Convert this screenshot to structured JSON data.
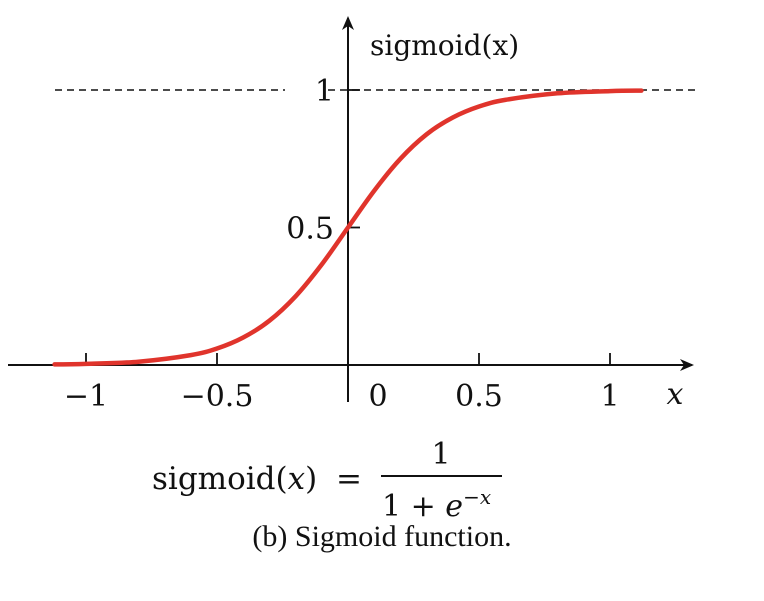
{
  "chart_data": {
    "type": "line",
    "title": "",
    "xlabel": "x",
    "ylabel": "sigmoid(x)",
    "xlim": [
      -1.2,
      1.3
    ],
    "ylim": [
      0,
      1.04
    ],
    "x_ticks": [
      {
        "value": -1,
        "label": "−1"
      },
      {
        "value": -0.5,
        "label": "−0.5"
      },
      {
        "value": 0,
        "label": "0"
      },
      {
        "value": 0.5,
        "label": "0.5"
      },
      {
        "value": 1,
        "label": "1"
      }
    ],
    "y_ticks": [
      {
        "value": 0.5,
        "label": "0.5"
      },
      {
        "value": 1,
        "label": "1"
      }
    ],
    "grid": false,
    "reference_lines": [
      {
        "axis": "y",
        "value": 1,
        "style": "dashed",
        "label": "1"
      }
    ],
    "series": [
      {
        "color": "#e0342c",
        "function": "sigmoid(5.5 * x)",
        "x": [
          -1.12,
          -1.0,
          -0.8,
          -0.6,
          -0.5,
          -0.4,
          -0.3,
          -0.2,
          -0.1,
          0,
          0.1,
          0.2,
          0.3,
          0.4,
          0.5,
          0.6,
          0.8,
          1.0,
          1.12
        ],
        "y": [
          0.002,
          0.004,
          0.012,
          0.036,
          0.06,
          0.1,
          0.161,
          0.25,
          0.366,
          0.5,
          0.634,
          0.75,
          0.839,
          0.9,
          0.94,
          0.964,
          0.988,
          0.996,
          0.998
        ]
      }
    ]
  },
  "formula": {
    "lhs_fn": "sigmoid(",
    "lhs_var": "x",
    "lhs_close": ")",
    "equals": "=",
    "numerator": "1",
    "den_base": "1 + ",
    "den_e": "e",
    "den_exp": "−x"
  },
  "caption": "(b) Sigmoid function."
}
